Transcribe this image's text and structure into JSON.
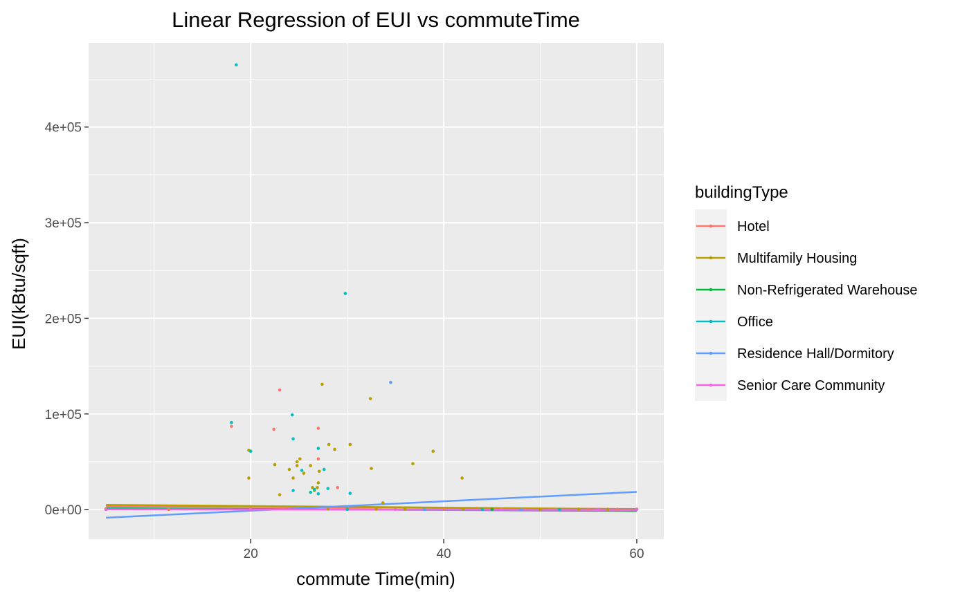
{
  "chart_data": {
    "type": "scatter",
    "title": "Linear Regression of EUI vs commuteTime",
    "xlabel": "commute Time(min)",
    "ylabel": "EUI(kBtu/sqft)",
    "xlim": [
      3.2,
      62.8
    ],
    "ylim": [
      -31000,
      488000
    ],
    "x_ticks": [
      20,
      40,
      60
    ],
    "x_tick_labels": [
      "20",
      "40",
      "60"
    ],
    "y_ticks": [
      0,
      100000,
      200000,
      300000,
      400000
    ],
    "y_tick_labels": [
      "0e+00",
      "1e+05",
      "2e+05",
      "3e+05",
      "4e+05"
    ],
    "grid": true,
    "legend": {
      "title": "buildingType",
      "position": "right"
    },
    "series": [
      {
        "name": "Hotel",
        "color": "#F8766D",
        "points": [
          [
            18.0,
            87000
          ],
          [
            22.4,
            84000
          ],
          [
            23.0,
            125000
          ],
          [
            27.0,
            85000
          ],
          [
            27.0,
            53000
          ],
          [
            29.0,
            23000
          ],
          [
            5.0,
            500
          ],
          [
            11.5,
            200
          ],
          [
            30.0,
            300
          ],
          [
            35.0,
            200
          ],
          [
            40.0,
            400
          ],
          [
            45.0,
            300
          ],
          [
            50.0,
            200
          ],
          [
            55.0,
            300
          ],
          [
            58.0,
            200
          ]
        ],
        "fit": [
          [
            5.0,
            3500
          ],
          [
            60.0,
            600
          ]
        ]
      },
      {
        "name": "Multifamily Housing",
        "color": "#B79F00",
        "points": [
          [
            19.8,
            62000
          ],
          [
            19.8,
            33000
          ],
          [
            22.5,
            47000
          ],
          [
            23.0,
            15500
          ],
          [
            24.0,
            42000
          ],
          [
            24.4,
            33000
          ],
          [
            24.8,
            50000
          ],
          [
            24.8,
            46000
          ],
          [
            25.1,
            53000
          ],
          [
            25.5,
            38000
          ],
          [
            26.2,
            46000
          ],
          [
            26.4,
            23000
          ],
          [
            26.6,
            20000
          ],
          [
            26.9,
            23000
          ],
          [
            27.0,
            28000
          ],
          [
            27.1,
            40000
          ],
          [
            27.4,
            131000
          ],
          [
            28.1,
            68000
          ],
          [
            28.7,
            63000
          ],
          [
            30.3,
            68000
          ],
          [
            32.4,
            116000
          ],
          [
            32.5,
            43000
          ],
          [
            33.7,
            7000
          ],
          [
            36.8,
            48000
          ],
          [
            38.9,
            61000
          ],
          [
            41.9,
            33000
          ],
          [
            5.0,
            700
          ],
          [
            20.0,
            500
          ],
          [
            28.0,
            600
          ],
          [
            33.0,
            400
          ],
          [
            36.0,
            500
          ],
          [
            42.0,
            600
          ],
          [
            46.0,
            500
          ],
          [
            50.0,
            400
          ],
          [
            54.0,
            500
          ],
          [
            57.0,
            300
          ],
          [
            60.0,
            400
          ]
        ],
        "fit": [
          [
            5.0,
            5000
          ],
          [
            60.0,
            400
          ]
        ]
      },
      {
        "name": "Non-Refrigerated Warehouse",
        "color": "#00BA38",
        "points": [
          [
            5.0,
            300
          ],
          [
            30.0,
            200
          ],
          [
            45.0,
            300
          ],
          [
            60.0,
            200
          ]
        ],
        "fit": [
          [
            5.0,
            1500
          ],
          [
            60.0,
            -1500
          ]
        ]
      },
      {
        "name": "Office",
        "color": "#00BFC4",
        "points": [
          [
            18.5,
            465000
          ],
          [
            18.0,
            91000
          ],
          [
            20.0,
            61000
          ],
          [
            24.3,
            99000
          ],
          [
            24.4,
            74000
          ],
          [
            24.4,
            20000
          ],
          [
            25.3,
            41000
          ],
          [
            26.2,
            18000
          ],
          [
            26.6,
            21000
          ],
          [
            27.0,
            64000
          ],
          [
            27.0,
            16500
          ],
          [
            27.6,
            42000
          ],
          [
            28.0,
            22000
          ],
          [
            29.8,
            226000
          ],
          [
            30.3,
            17000
          ],
          [
            5.0,
            200
          ],
          [
            30.0,
            300
          ],
          [
            38.0,
            200
          ],
          [
            44.0,
            300
          ],
          [
            52.0,
            200
          ],
          [
            60.0,
            300
          ]
        ],
        "fit": [
          [
            5.0,
            1000
          ],
          [
            60.0,
            -1000
          ]
        ]
      },
      {
        "name": "Residence Hall/Dormitory",
        "color": "#619CFF",
        "points": [
          [
            34.5,
            133000
          ],
          [
            38.0,
            300
          ],
          [
            48.0,
            200
          ]
        ],
        "fit": [
          [
            5.0,
            -8500
          ],
          [
            60.0,
            18500
          ]
        ]
      },
      {
        "name": "Senior Care Community",
        "color": "#F564E3",
        "points": [
          [
            5.0,
            200
          ],
          [
            20.0,
            300
          ],
          [
            35.0,
            200
          ],
          [
            46.0,
            300
          ],
          [
            56.0,
            200
          ],
          [
            60.0,
            300
          ]
        ],
        "fit": [
          [
            5.0,
            200
          ],
          [
            60.0,
            -400
          ]
        ]
      }
    ]
  }
}
